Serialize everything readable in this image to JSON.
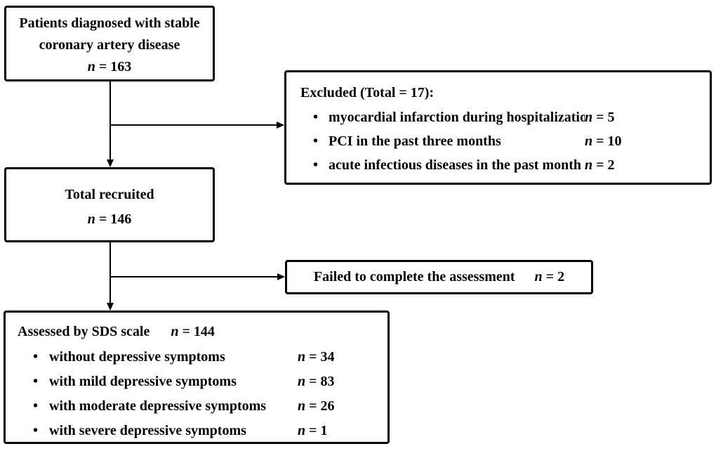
{
  "colors": {
    "ink": "#000000",
    "paper": "#ffffff"
  },
  "bullet_char": "•",
  "boxes": {
    "diagnosed": {
      "lines": [
        "Patients diagnosed with stable",
        "coronary artery disease"
      ],
      "count": {
        "sym": "n",
        "rest": " = 163"
      }
    },
    "excluded": {
      "title": "Excluded (Total = 17):",
      "items": [
        {
          "label": "myocardial infarction during hospitalization",
          "count": {
            "sym": "n",
            "rest": " = 5"
          }
        },
        {
          "label": "PCI in the past three months",
          "count": {
            "sym": "n",
            "rest": " = 10"
          }
        },
        {
          "label": "acute infectious diseases in the past month",
          "count": {
            "sym": "n",
            "rest": " = 2"
          }
        }
      ]
    },
    "recruited": {
      "title": "Total recruited",
      "count": {
        "sym": "n",
        "rest": " = 146"
      }
    },
    "failed": {
      "label": "Failed to complete the assessment",
      "count": {
        "sym": "n",
        "rest": " = 2"
      }
    },
    "assessed": {
      "title": "Assessed by SDS scale",
      "count": {
        "sym": "n",
        "rest": " = 144"
      },
      "items": [
        {
          "label": "without depressive symptoms",
          "count": {
            "sym": "n",
            "rest": " = 34"
          }
        },
        {
          "label": "with mild depressive symptoms",
          "count": {
            "sym": "n",
            "rest": " = 83"
          }
        },
        {
          "label": "with moderate depressive symptoms",
          "count": {
            "sym": "n",
            "rest": " = 26"
          }
        },
        {
          "label": "with severe depressive symptoms",
          "count": {
            "sym": "n",
            "rest": " = 1"
          }
        }
      ]
    }
  }
}
